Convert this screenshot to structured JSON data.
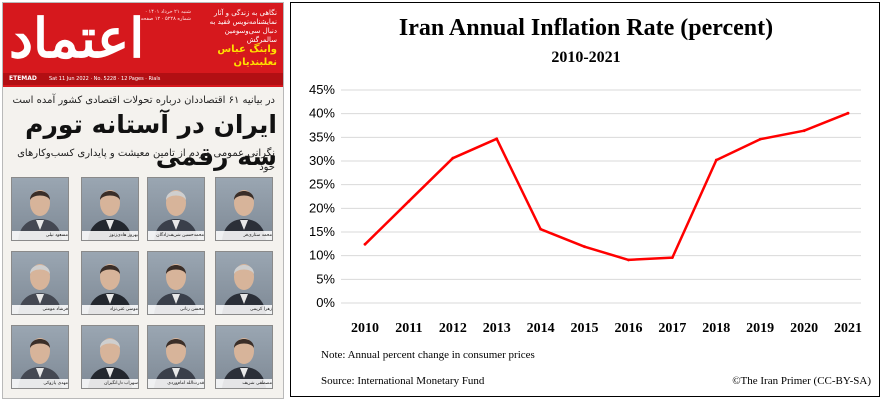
{
  "newspaper": {
    "logo": "اعتماد",
    "logo_latin": "ETEMAD",
    "issue_line": "Sat 11 Jun 2022 · No. 5228 · 12 Pages · Rials",
    "masthead_info": "شنبه ۲۱ خرداد ۱۴۰۱ · شماره ۵۲۲۸ · ۱۲ صفحه",
    "teaser_1": "نگاهی به زندگی و آثار نمایشنامه‌نویس فقید به دنبال سی‌وسومین سالمرگش",
    "teaser_2": "وابنگ عباس نعلبندیان",
    "kicker": "در بیانیه ۶۱ اقتصاددان درباره تحولات اقتصادی کشور آمده است",
    "headline": "ایران در آستانه تورم سه رقمی",
    "subhead": "نگرانی عمومی مردم از تامین معیشت و پایداری کسب‌وکارهای خود",
    "portraits": [
      {
        "name": "محمد ستاری‌فر"
      },
      {
        "name": "محمدحسین شریف‌زادگان"
      },
      {
        "name": "بهروز هادی‌زنوز"
      },
      {
        "name": "مسعود نیلی"
      },
      {
        "name": "زهرا کریمی"
      },
      {
        "name": "محسن رنانی"
      },
      {
        "name": "موسی غنی‌نژاد"
      },
      {
        "name": "فرشاد مومنی"
      },
      {
        "name": "مصطفی شریف"
      },
      {
        "name": "قدرت‌الله امام‌وردی"
      },
      {
        "name": "سهراب دل‌انگیزان"
      },
      {
        "name": "مهدی پازوکی"
      }
    ]
  },
  "chart_data": {
    "type": "line",
    "title": "Iran Annual Inflation Rate (percent)",
    "subtitle": "2010-2021",
    "x": [
      "2010",
      "2011",
      "2012",
      "2013",
      "2014",
      "2015",
      "2016",
      "2017",
      "2018",
      "2019",
      "2020",
      "2021"
    ],
    "series": [
      {
        "name": "Inflation rate",
        "color": "#ff0000",
        "values": [
          12.4,
          21.5,
          30.6,
          34.7,
          15.6,
          11.9,
          9.1,
          9.6,
          30.2,
          34.6,
          36.4,
          40.1
        ]
      }
    ],
    "y_ticks": [
      "0%",
      "5%",
      "10%",
      "15%",
      "20%",
      "25%",
      "30%",
      "35%",
      "40%",
      "45%"
    ],
    "ylim": [
      0,
      45
    ],
    "grid": true,
    "note": "Note: Annual percent change in consumer prices",
    "source": "Source: International Monetary Fund",
    "credit": "©The Iran Primer  (CC-BY-SA)"
  }
}
